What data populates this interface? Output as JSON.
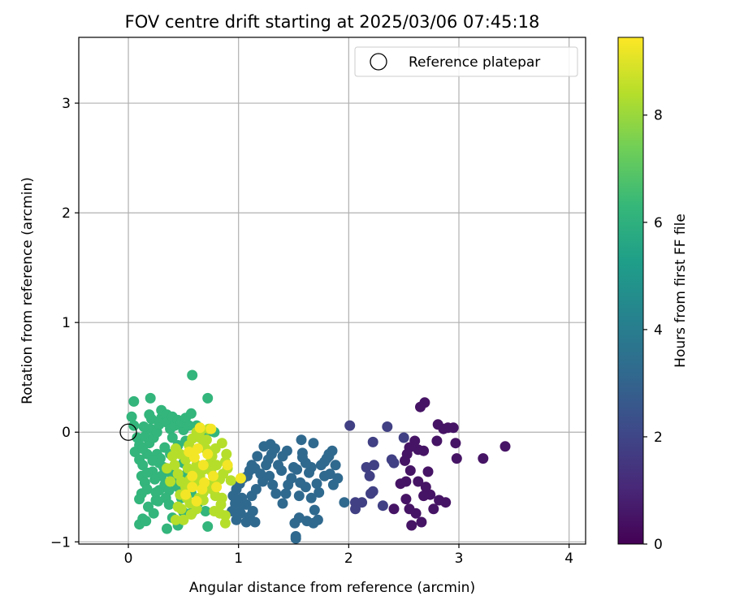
{
  "chart_data": {
    "type": "scatter",
    "title": "FOV centre drift starting at 2025/03/06 07:45:18",
    "xlabel": "Angular distance from reference (arcmin)",
    "ylabel": "Rotation from reference (arcmin)",
    "xlim": [
      -0.45,
      4.15
    ],
    "ylim": [
      -1.02,
      3.6
    ],
    "xticks": [
      0,
      1,
      2,
      3,
      4
    ],
    "yticks": [
      -1,
      0,
      1,
      2,
      3
    ],
    "xtick_labels": [
      "0",
      "1",
      "2",
      "3",
      "4"
    ],
    "ytick_labels": [
      "−1",
      "0",
      "1",
      "2",
      "3"
    ],
    "grid": true,
    "legend": {
      "placement": "top-right",
      "label": "Reference platepar"
    },
    "reference_point": {
      "x": 0,
      "y": 0
    },
    "colorbar": {
      "label": "Hours from first FF file",
      "colormap": "viridis",
      "range": [
        0,
        9.45
      ],
      "ticks": [
        0,
        2,
        4,
        6,
        8
      ],
      "tick_labels": [
        "0",
        "2",
        "4",
        "6",
        "8"
      ],
      "colors": [
        "#440154",
        "#482878",
        "#3e4989",
        "#31688e",
        "#26828e",
        "#1f9e89",
        "#35b779",
        "#6ece58",
        "#b5de2b",
        "#fde725"
      ]
    },
    "series": [
      {
        "t": 0.5,
        "points": [
          [
            3.42,
            -0.13
          ],
          [
            3.22,
            -0.24
          ],
          [
            2.98,
            -0.24
          ],
          [
            2.95,
            0.04
          ],
          [
            2.9,
            0.04
          ],
          [
            2.86,
            0.03
          ],
          [
            2.81,
            0.07
          ],
          [
            2.8,
            -0.08
          ],
          [
            2.88,
            -0.64
          ],
          [
            2.82,
            -0.62
          ],
          [
            2.77,
            -0.7
          ],
          [
            2.74,
            -0.57
          ],
          [
            2.7,
            -0.5
          ],
          [
            2.72,
            -0.36
          ],
          [
            2.68,
            -0.58
          ],
          [
            2.66,
            -0.82
          ],
          [
            2.61,
            -0.74
          ],
          [
            2.57,
            -0.85
          ],
          [
            2.55,
            -0.7
          ],
          [
            2.52,
            -0.61
          ],
          [
            2.69,
            0.27
          ],
          [
            2.65,
            0.23
          ],
          [
            2.6,
            -0.08
          ],
          [
            2.55,
            -0.14
          ],
          [
            2.53,
            -0.2
          ],
          [
            2.51,
            -0.26
          ],
          [
            2.47,
            -0.47
          ],
          [
            2.41,
            -0.7
          ],
          [
            2.63,
            -0.16
          ],
          [
            2.68,
            -0.17
          ],
          [
            2.97,
            -0.1
          ],
          [
            2.52,
            -0.45
          ],
          [
            2.56,
            -0.35
          ],
          [
            2.63,
            -0.45
          ]
        ]
      },
      {
        "t": 1.8,
        "points": [
          [
            2.35,
            0.05
          ],
          [
            2.5,
            -0.05
          ],
          [
            2.22,
            -0.09
          ],
          [
            2.41,
            -0.28
          ],
          [
            2.39,
            -0.25
          ],
          [
            2.23,
            -0.3
          ],
          [
            2.16,
            -0.32
          ],
          [
            2.19,
            -0.4
          ],
          [
            2.22,
            -0.54
          ],
          [
            2.2,
            -0.56
          ],
          [
            2.12,
            -0.64
          ],
          [
            2.06,
            -0.7
          ],
          [
            2.01,
            0.06
          ],
          [
            2.06,
            -0.64
          ],
          [
            2.31,
            -0.67
          ]
        ]
      },
      {
        "t": 3.2,
        "points": [
          [
            1.96,
            -0.64
          ],
          [
            1.85,
            -0.17
          ],
          [
            1.82,
            -0.22
          ],
          [
            1.88,
            -0.3
          ],
          [
            1.83,
            -0.38
          ],
          [
            1.86,
            -0.48
          ],
          [
            1.9,
            -0.42
          ],
          [
            1.8,
            -0.24
          ],
          [
            1.78,
            -0.27
          ],
          [
            1.75,
            -0.3
          ],
          [
            1.78,
            -0.4
          ],
          [
            1.71,
            -0.47
          ],
          [
            1.73,
            -0.55
          ],
          [
            1.64,
            -0.37
          ],
          [
            1.66,
            -0.32
          ],
          [
            1.61,
            -0.28
          ],
          [
            1.58,
            -0.19
          ],
          [
            1.57,
            -0.07
          ],
          [
            1.53,
            -0.34
          ],
          [
            1.5,
            -0.32
          ],
          [
            1.48,
            -0.42
          ],
          [
            1.45,
            -0.48
          ],
          [
            1.43,
            -0.56
          ],
          [
            1.56,
            -0.46
          ],
          [
            1.61,
            -0.5
          ],
          [
            1.66,
            -0.6
          ],
          [
            1.69,
            -0.71
          ],
          [
            1.72,
            -0.8
          ],
          [
            1.68,
            -0.83
          ],
          [
            1.62,
            -0.81
          ],
          [
            1.55,
            -0.78
          ],
          [
            1.51,
            -0.83
          ],
          [
            1.52,
            -0.95
          ],
          [
            1.52,
            -0.97
          ],
          [
            1.39,
            -0.35
          ],
          [
            1.36,
            -0.3
          ],
          [
            1.4,
            -0.22
          ],
          [
            1.33,
            -0.15
          ],
          [
            1.3,
            -0.2
          ],
          [
            1.27,
            -0.25
          ],
          [
            1.25,
            -0.3
          ],
          [
            1.28,
            -0.4
          ],
          [
            1.31,
            -0.48
          ],
          [
            1.34,
            -0.56
          ],
          [
            1.4,
            -0.65
          ],
          [
            1.22,
            -0.45
          ],
          [
            1.2,
            -0.38
          ],
          [
            1.23,
            -0.13
          ],
          [
            1.29,
            -0.11
          ],
          [
            1.17,
            -0.22
          ],
          [
            1.15,
            -0.33
          ],
          [
            1.12,
            -0.3
          ],
          [
            1.1,
            -0.35
          ],
          [
            1.08,
            -0.4
          ],
          [
            1.04,
            -0.42
          ],
          [
            1.01,
            -0.47
          ],
          [
            0.98,
            -0.52
          ],
          [
            0.95,
            -0.58
          ],
          [
            1.03,
            -0.6
          ],
          [
            1.07,
            -0.66
          ],
          [
            1.12,
            -0.58
          ],
          [
            1.16,
            -0.52
          ],
          [
            1.13,
            -0.72
          ],
          [
            1.1,
            -0.77
          ],
          [
            1.07,
            -0.82
          ],
          [
            1.15,
            -0.82
          ],
          [
            1.02,
            -0.74
          ],
          [
            0.98,
            -0.8
          ],
          [
            0.94,
            -0.72
          ],
          [
            1.01,
            -0.68
          ],
          [
            0.97,
            -0.65
          ],
          [
            1.82,
            -0.2
          ],
          [
            1.44,
            -0.17
          ],
          [
            1.58,
            -0.23
          ],
          [
            1.68,
            -0.1
          ],
          [
            1.55,
            -0.58
          ]
        ]
      },
      {
        "t": 6.2,
        "points": [
          [
            0.05,
            0.28
          ],
          [
            0.03,
            0.14
          ],
          [
            0.05,
            0.06
          ],
          [
            0.08,
            -0.05
          ],
          [
            0.1,
            -0.12
          ],
          [
            0.06,
            -0.18
          ],
          [
            0.1,
            -0.25
          ],
          [
            0.13,
            -0.3
          ],
          [
            0.17,
            -0.2
          ],
          [
            0.19,
            -0.1
          ],
          [
            0.15,
            -0.04
          ],
          [
            0.2,
            0.03
          ],
          [
            0.21,
            0.12
          ],
          [
            0.19,
            0.16
          ],
          [
            0.2,
            0.31
          ],
          [
            0.23,
            -0.05
          ],
          [
            0.26,
            0.0
          ],
          [
            0.28,
            0.07
          ],
          [
            0.3,
            0.13
          ],
          [
            0.3,
            0.2
          ],
          [
            0.35,
            0.16
          ],
          [
            0.35,
            0.09
          ],
          [
            0.38,
            0.03
          ],
          [
            0.4,
            0.14
          ],
          [
            0.42,
            0.06
          ],
          [
            0.45,
            0.11
          ],
          [
            0.5,
            0.02
          ],
          [
            0.48,
            0.09
          ],
          [
            0.52,
            0.13
          ],
          [
            0.55,
            0.06
          ],
          [
            0.57,
            0.17
          ],
          [
            0.62,
            0.06
          ],
          [
            0.72,
            0.31
          ],
          [
            0.58,
            0.52
          ],
          [
            0.12,
            -0.4
          ],
          [
            0.15,
            -0.46
          ],
          [
            0.12,
            -0.56
          ],
          [
            0.1,
            -0.61
          ],
          [
            0.17,
            -0.52
          ],
          [
            0.18,
            -0.68
          ],
          [
            0.23,
            -0.74
          ],
          [
            0.13,
            -0.79
          ],
          [
            0.1,
            -0.84
          ],
          [
            0.16,
            -0.81
          ],
          [
            0.25,
            -0.62
          ],
          [
            0.28,
            -0.53
          ],
          [
            0.33,
            -0.48
          ],
          [
            0.37,
            -0.53
          ],
          [
            0.34,
            -0.6
          ],
          [
            0.37,
            -0.66
          ],
          [
            0.35,
            -0.88
          ],
          [
            0.45,
            -0.85
          ],
          [
            0.5,
            -0.73
          ],
          [
            0.48,
            -0.6
          ],
          [
            0.45,
            -0.5
          ],
          [
            0.42,
            -0.42
          ],
          [
            0.38,
            -0.37
          ],
          [
            0.3,
            -0.4
          ],
          [
            0.28,
            -0.28
          ],
          [
            0.22,
            -0.36
          ],
          [
            0.24,
            -0.43
          ],
          [
            0.32,
            -0.32
          ],
          [
            0.26,
            -0.2
          ],
          [
            0.33,
            -0.14
          ],
          [
            0.38,
            -0.2
          ],
          [
            0.29,
            -0.24
          ],
          [
            0.17,
            -0.37
          ],
          [
            0.42,
            -0.3
          ],
          [
            0.5,
            -0.28
          ],
          [
            0.53,
            -0.38
          ],
          [
            0.6,
            -0.42
          ],
          [
            0.57,
            -0.55
          ],
          [
            0.63,
            -0.65
          ],
          [
            0.7,
            -0.72
          ],
          [
            0.72,
            -0.86
          ],
          [
            0.4,
            -0.05
          ],
          [
            0.45,
            -0.12
          ],
          [
            0.52,
            -0.08
          ],
          [
            0.58,
            -0.16
          ],
          [
            0.7,
            -0.04
          ],
          [
            0.78,
            0.0
          ],
          [
            0.25,
            -0.55
          ],
          [
            0.27,
            -0.63
          ],
          [
            0.4,
            -0.78
          ],
          [
            0.58,
            -0.73
          ],
          [
            0.13,
            -0.15
          ],
          [
            0.22,
            -0.26
          ],
          [
            0.14,
            0.05
          ],
          [
            0.43,
            -0.44
          ]
        ]
      },
      {
        "t": 8.4,
        "points": [
          [
            0.43,
            -0.8
          ],
          [
            0.48,
            -0.7
          ],
          [
            0.53,
            -0.6
          ],
          [
            0.45,
            -0.68
          ],
          [
            0.56,
            -0.65
          ],
          [
            0.62,
            -0.7
          ],
          [
            0.64,
            -0.6
          ],
          [
            0.68,
            -0.55
          ],
          [
            0.72,
            -0.48
          ],
          [
            0.76,
            -0.52
          ],
          [
            0.79,
            -0.58
          ],
          [
            0.84,
            -0.66
          ],
          [
            0.88,
            -0.76
          ],
          [
            0.83,
            -0.74
          ],
          [
            0.78,
            -0.72
          ],
          [
            0.9,
            -0.33
          ],
          [
            0.86,
            -0.38
          ],
          [
            0.83,
            -0.43
          ],
          [
            0.89,
            -0.2
          ],
          [
            0.88,
            -0.27
          ],
          [
            0.85,
            -0.1
          ],
          [
            0.79,
            -0.15
          ],
          [
            0.76,
            -0.22
          ],
          [
            0.73,
            -0.29
          ],
          [
            0.68,
            -0.34
          ],
          [
            0.62,
            -0.3
          ],
          [
            0.6,
            -0.36
          ],
          [
            0.56,
            -0.43
          ],
          [
            0.52,
            -0.5
          ],
          [
            0.48,
            -0.45
          ],
          [
            0.45,
            -0.38
          ],
          [
            0.42,
            -0.3
          ],
          [
            0.4,
            -0.22
          ],
          [
            0.43,
            -0.15
          ],
          [
            0.47,
            -0.2
          ],
          [
            0.52,
            -0.25
          ],
          [
            0.55,
            -0.12
          ],
          [
            0.58,
            -0.06
          ],
          [
            0.62,
            0.0
          ],
          [
            0.65,
            -0.05
          ],
          [
            0.68,
            -0.12
          ],
          [
            0.71,
            -0.07
          ],
          [
            0.73,
            0.03
          ],
          [
            0.75,
            -0.35
          ],
          [
            0.79,
            -0.45
          ],
          [
            0.68,
            -0.62
          ],
          [
            0.61,
            -0.48
          ],
          [
            0.57,
            -0.75
          ],
          [
            0.35,
            -0.33
          ],
          [
            0.38,
            -0.45
          ],
          [
            0.65,
            -0.4
          ],
          [
            0.85,
            -0.6
          ],
          [
            0.7,
            -0.15
          ],
          [
            0.8,
            -0.3
          ],
          [
            0.5,
            -0.8
          ],
          [
            0.66,
            0.02
          ],
          [
            0.47,
            -0.57
          ],
          [
            0.93,
            -0.44
          ],
          [
            0.88,
            -0.83
          ],
          [
            0.54,
            -0.33
          ]
        ]
      },
      {
        "t": 9.3,
        "points": [
          [
            0.65,
            0.04
          ],
          [
            0.75,
            0.03
          ],
          [
            0.58,
            -0.5
          ],
          [
            0.52,
            -0.57
          ],
          [
            0.62,
            -0.63
          ],
          [
            0.6,
            -0.23
          ],
          [
            0.69,
            -0.46
          ],
          [
            0.8,
            -0.5
          ],
          [
            0.72,
            -0.2
          ],
          [
            0.55,
            -0.18
          ],
          [
            0.9,
            -0.3
          ],
          [
            0.68,
            -0.3
          ],
          [
            0.77,
            -0.4
          ],
          [
            1.02,
            -0.42
          ],
          [
            0.58,
            -0.4
          ],
          [
            0.67,
            -0.52
          ],
          [
            0.63,
            -0.15
          ]
        ]
      }
    ]
  }
}
